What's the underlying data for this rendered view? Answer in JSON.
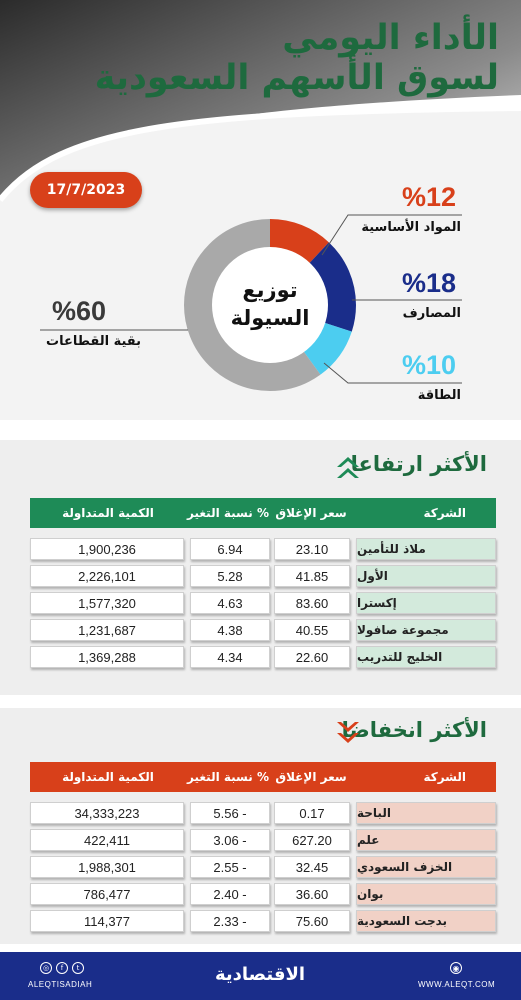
{
  "title": {
    "line1": "الأداء اليومي",
    "line2": "لسوق الأسهم السعودية"
  },
  "date": "17/7/2023",
  "liquidity": {
    "center_line1": "توزيع",
    "center_line2": "السيولة",
    "segments": [
      {
        "pct_label": "%12",
        "name": "المواد الأساسية",
        "value": 12,
        "color": "#d8401a"
      },
      {
        "pct_label": "%18",
        "name": "المصارف",
        "value": 18,
        "color": "#1a2d8a"
      },
      {
        "pct_label": "%10",
        "name": "الطاقة",
        "value": 10,
        "color": "#4ccdf0"
      },
      {
        "pct_label": "%60",
        "name": "بقية القطاعات",
        "value": 60,
        "color": "#a9a9a9"
      }
    ]
  },
  "headers": {
    "company": "الشركة",
    "close": "سعر الإغلاق",
    "change": "نسبة التغير %",
    "volume": "الكمية المتداولة"
  },
  "gainers": {
    "title": "الأكثر ارتفاعا",
    "accent": "#1e8b57",
    "rows": [
      {
        "company": "ملاذ للتأمين",
        "close": "23.10",
        "change": "6.94",
        "volume": "1,900,236"
      },
      {
        "company": "الأول",
        "close": "41.85",
        "change": "5.28",
        "volume": "2,226,101"
      },
      {
        "company": "إكسترا",
        "close": "83.60",
        "change": "4.63",
        "volume": "1,577,320"
      },
      {
        "company": "مجموعة صافولا",
        "close": "40.55",
        "change": "4.38",
        "volume": "1,231,687"
      },
      {
        "company": "الخليج للتدريب",
        "close": "22.60",
        "change": "4.34",
        "volume": "1,369,288"
      }
    ]
  },
  "losers": {
    "title": "الأكثر انخفاضا",
    "accent": "#d8401a",
    "rows": [
      {
        "company": "الباحة",
        "close": "0.17",
        "change": "5.56 -",
        "volume": "34,333,223"
      },
      {
        "company": "علم",
        "close": "627.20",
        "change": "3.06 -",
        "volume": "422,411"
      },
      {
        "company": "الخزف السعودي",
        "close": "32.45",
        "change": "2.55 -",
        "volume": "1,988,301"
      },
      {
        "company": "بوان",
        "close": "36.60",
        "change": "2.40 -",
        "volume": "786,477"
      },
      {
        "company": "بدجت السعودية",
        "close": "75.60",
        "change": "2.33 -",
        "volume": "114,377"
      }
    ]
  },
  "footer": {
    "handle": "ALEQTISADIAH",
    "logo": "الاقتصادية",
    "website": "WWW.ALEQT.COM",
    "social_icons": [
      "instagram-icon",
      "facebook-icon",
      "twitter-icon"
    ]
  }
}
